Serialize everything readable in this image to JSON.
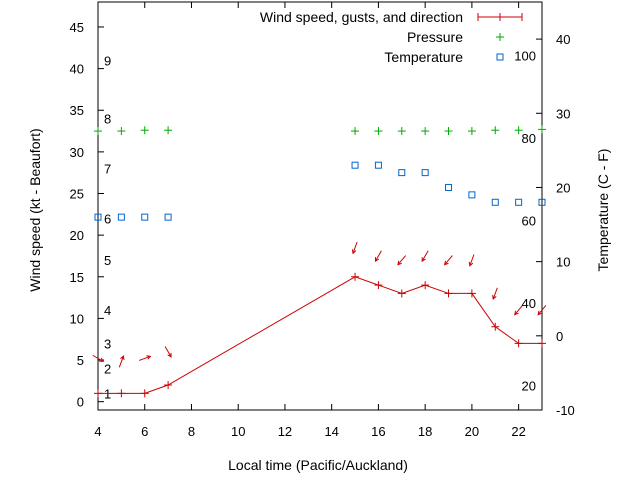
{
  "chart_data": {
    "type": "line",
    "x_axis": {
      "label": "Local time (Pacific/Auckland)",
      "range": [
        4,
        23
      ],
      "ticks": [
        4,
        6,
        8,
        10,
        12,
        14,
        16,
        18,
        20,
        22
      ]
    },
    "y_left": {
      "label": "Wind speed (kt - Beaufort)",
      "range": [
        -1,
        48
      ],
      "ticks": [
        0,
        5,
        10,
        15,
        20,
        25,
        30,
        35,
        40,
        45
      ]
    },
    "y_right": {
      "label": "Temperature (C - F)",
      "range": [
        -10,
        45
      ],
      "ticks": [
        -10,
        0,
        10,
        20,
        30,
        40
      ]
    },
    "beaufort_scale": [
      {
        "label": "1",
        "kt": 1
      },
      {
        "label": "2",
        "kt": 4
      },
      {
        "label": "3",
        "kt": 7
      },
      {
        "label": "4",
        "kt": 11
      },
      {
        "label": "5",
        "kt": 17
      },
      {
        "label": "6",
        "kt": 22
      },
      {
        "label": "7",
        "kt": 28
      },
      {
        "label": "8",
        "kt": 34
      },
      {
        "label": "9",
        "kt": 41
      }
    ],
    "fahrenheit_scale": [
      {
        "label": "20",
        "c": -6.67
      },
      {
        "label": "40",
        "c": 4.44
      },
      {
        "label": "60",
        "c": 15.56
      },
      {
        "label": "80",
        "c": 26.67
      },
      {
        "label": "100",
        "c": 37.78
      }
    ],
    "legend": {
      "placement": "top-right",
      "entries": [
        "Wind speed, gusts, and direction",
        "Pressure",
        "Temperature"
      ]
    },
    "series": [
      {
        "name": "Wind speed, gusts, and direction",
        "color": "#cc0000",
        "axis": "left",
        "points": [
          [
            4,
            1
          ],
          [
            5,
            1
          ],
          [
            6,
            1
          ],
          [
            7,
            2
          ],
          [
            15,
            15
          ],
          [
            16,
            14
          ],
          [
            17,
            13
          ],
          [
            18,
            14
          ],
          [
            19,
            13
          ],
          [
            20,
            13
          ],
          [
            21,
            9
          ],
          [
            22,
            7
          ],
          [
            23,
            7
          ]
        ]
      },
      {
        "name": "Pressure",
        "color": "#00aa00",
        "axis": "left",
        "points": [
          [
            4,
            32.5
          ],
          [
            5,
            32.5
          ],
          [
            6,
            32.6
          ],
          [
            7,
            32.6
          ],
          [
            15,
            32.5
          ],
          [
            16,
            32.5
          ],
          [
            17,
            32.5
          ],
          [
            18,
            32.5
          ],
          [
            19,
            32.5
          ],
          [
            20,
            32.5
          ],
          [
            21,
            32.6
          ],
          [
            22,
            32.6
          ],
          [
            23,
            32.7
          ]
        ]
      },
      {
        "name": "Temperature",
        "color": "#0066cc",
        "axis": "right",
        "points": [
          [
            4,
            16
          ],
          [
            5,
            16
          ],
          [
            6,
            16
          ],
          [
            7,
            16
          ],
          [
            15,
            23
          ],
          [
            16,
            23
          ],
          [
            17,
            22
          ],
          [
            18,
            22
          ],
          [
            19,
            20
          ],
          [
            20,
            19
          ],
          [
            21,
            18
          ],
          [
            22,
            18
          ],
          [
            23,
            18
          ]
        ]
      }
    ],
    "wind_direction_arrows": [
      {
        "x": 4,
        "y": 5.2,
        "dir_deg": 300
      },
      {
        "x": 5,
        "y": 4.8,
        "dir_deg": 200
      },
      {
        "x": 6,
        "y": 5.2,
        "dir_deg": 250
      },
      {
        "x": 7,
        "y": 6.0,
        "dir_deg": 330
      },
      {
        "x": 15,
        "y": 18.5,
        "dir_deg": 20
      },
      {
        "x": 16,
        "y": 17.5,
        "dir_deg": 30
      },
      {
        "x": 17,
        "y": 17.0,
        "dir_deg": 40
      },
      {
        "x": 18,
        "y": 17.5,
        "dir_deg": 30
      },
      {
        "x": 19,
        "y": 17.0,
        "dir_deg": 40
      },
      {
        "x": 20,
        "y": 17.0,
        "dir_deg": 20
      },
      {
        "x": 21,
        "y": 13.0,
        "dir_deg": 20
      },
      {
        "x": 22,
        "y": 11.0,
        "dir_deg": 40
      },
      {
        "x": 23,
        "y": 11.0,
        "dir_deg": 40
      }
    ]
  }
}
